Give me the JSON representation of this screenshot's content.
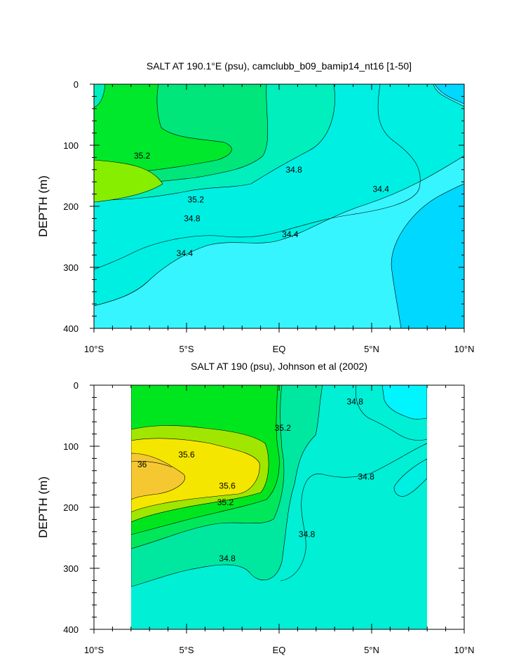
{
  "chart_data": [
    {
      "type": "contour",
      "title": "SALT AT 190.1°E (psu), camclubb_b09_bamip14_nt16 [1-50]",
      "xlabel": "",
      "ylabel": "DEPTH (m)",
      "xlim": [
        -10,
        10
      ],
      "ylim": [
        400,
        0
      ],
      "x_ticks": [
        "10°S",
        "5°S",
        "EQ",
        "5°N",
        "10°N"
      ],
      "y_ticks": [
        "0",
        "100",
        "200",
        "300",
        "400"
      ],
      "grid": false,
      "contour_levels": [
        34.2,
        34.4,
        34.6,
        34.8,
        35.0,
        35.2,
        35.4
      ],
      "contour_labels": [
        {
          "text": "35.2",
          "lat": -7.4,
          "depth": 117
        },
        {
          "text": "35.2",
          "lat": -4.5,
          "depth": 189
        },
        {
          "text": "34.8",
          "lat": -4.7,
          "depth": 220
        },
        {
          "text": "34.4",
          "lat": -5.1,
          "depth": 277
        },
        {
          "text": "34.8",
          "lat": 0.8,
          "depth": 140
        },
        {
          "text": "34.4",
          "lat": 0.6,
          "depth": 246
        },
        {
          "text": "34.4",
          "lat": 5.5,
          "depth": 172
        }
      ]
    },
    {
      "type": "contour",
      "title": "SALT AT 190 (psu), Johnson et al (2002)",
      "xlabel": "",
      "ylabel": "DEPTH (m)",
      "xlim": [
        -10,
        10
      ],
      "ylim": [
        400,
        0
      ],
      "x_ticks": [
        "10°S",
        "5°S",
        "EQ",
        "5°N",
        "10°N"
      ],
      "y_ticks": [
        "0",
        "100",
        "200",
        "300",
        "400"
      ],
      "grid": false,
      "data_xrange": [
        -8,
        8
      ],
      "contour_levels": [
        34.6,
        34.8,
        35.0,
        35.2,
        35.4,
        35.6,
        35.8,
        36.0
      ],
      "contour_labels": [
        {
          "text": "35.6",
          "lat": -5.0,
          "depth": 114
        },
        {
          "text": "36",
          "lat": -7.4,
          "depth": 130
        },
        {
          "text": "35.6",
          "lat": -2.8,
          "depth": 165
        },
        {
          "text": "35.2",
          "lat": -2.9,
          "depth": 192
        },
        {
          "text": "35.2",
          "lat": 0.2,
          "depth": 70
        },
        {
          "text": "34.8",
          "lat": 4.1,
          "depth": 27
        },
        {
          "text": "34.8",
          "lat": 4.7,
          "depth": 150
        },
        {
          "text": "34.8",
          "lat": 1.5,
          "depth": 244
        },
        {
          "text": "34.8",
          "lat": -2.8,
          "depth": 284
        }
      ]
    }
  ]
}
